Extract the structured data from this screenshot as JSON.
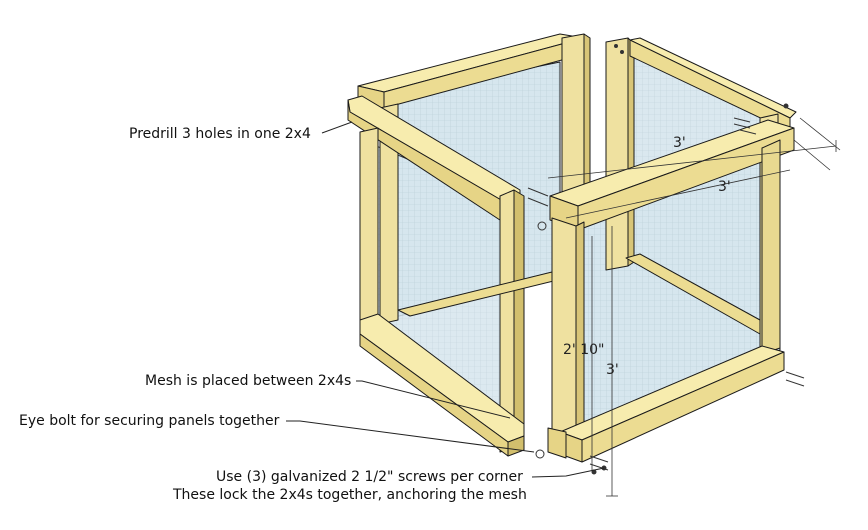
{
  "annotations": {
    "predrill": "Predrill 3 holes in one 2x4",
    "mesh": "Mesh is placed between 2x4s",
    "eyebolt": "Eye bolt for securing panels together",
    "screws_line1": "Use (3) galvanized 2 1/2\" screws per corner",
    "screws_line2": "These lock the 2x4s together, anchoring the mesh"
  },
  "dimensions": {
    "width_back": "3'",
    "width_front": "3'",
    "panel_height": "2' 10\"",
    "total_height": "3'"
  },
  "colors": {
    "wood_top": "#f7ecae",
    "wood_side": "#e6d486",
    "wood_dark": "#cdb96a",
    "mesh": "#d4e4ec",
    "outline": "#1a1a1a"
  }
}
